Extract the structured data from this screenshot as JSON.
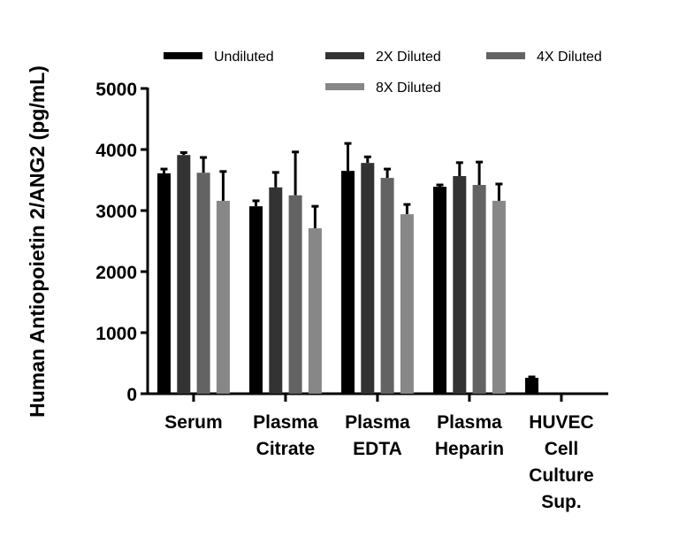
{
  "chart_data": {
    "type": "bar",
    "title": "",
    "xlabel": "",
    "ylabel": "Human Antiopoietin 2/ANG2 (pg/mL)",
    "ylim": [
      0,
      5000
    ],
    "yticks": [
      "0",
      "1000",
      "2000",
      "3000",
      "4000",
      "5000"
    ],
    "categories": [
      [
        "Serum"
      ],
      [
        "Plasma",
        "Citrate"
      ],
      [
        "Plasma",
        "EDTA"
      ],
      [
        "Plasma",
        "Heparin"
      ],
      [
        "HUVEC",
        "Cell",
        "Culture",
        "Sup."
      ]
    ],
    "legend_position": "top",
    "series": [
      {
        "name": "Undiluted",
        "color": "#000000",
        "values": [
          3610,
          3070,
          3650,
          3390,
          260
        ],
        "errors": [
          70,
          90,
          450,
          30,
          15
        ]
      },
      {
        "name": "2X Diluted",
        "color": "#333333",
        "values": [
          3910,
          3380,
          3780,
          3565,
          null
        ],
        "errors": [
          40,
          245,
          100,
          220,
          null
        ]
      },
      {
        "name": "4X Diluted",
        "color": "#636363",
        "values": [
          3620,
          3250,
          3535,
          3420,
          null
        ],
        "errors": [
          250,
          710,
          145,
          375,
          null
        ]
      },
      {
        "name": "8X Diluted",
        "color": "#878787",
        "values": [
          3160,
          2710,
          2940,
          3160,
          null
        ],
        "errors": [
          480,
          360,
          160,
          275,
          null
        ]
      }
    ]
  }
}
